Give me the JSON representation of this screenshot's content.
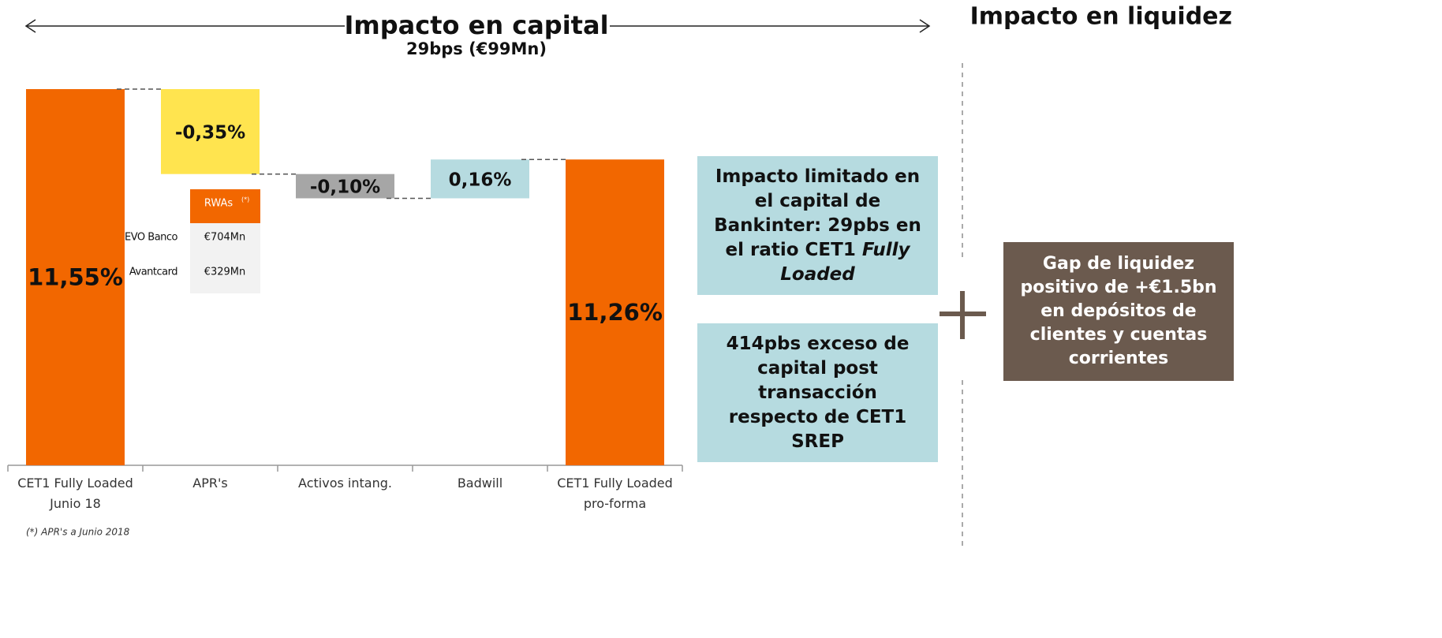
{
  "header": {
    "left_title": "Impacto en capital",
    "left_subtitle": "29bps (€99Mn)",
    "right_title": "Impacto en liquidez"
  },
  "chart_data": {
    "type": "waterfall",
    "categories": [
      "CET1 Fully Loaded Junio 18",
      "APR's",
      "Activos intang.",
      "Badwill",
      "CET1 Fully Loaded pro-forma"
    ],
    "values": [
      11.55,
      -0.35,
      -0.1,
      0.16,
      11.26
    ],
    "value_labels": [
      "11,55%",
      "-0,35%",
      "-0,10%",
      "0,16%",
      "11,26%"
    ],
    "colors": [
      "#f26700",
      "#ffe44f",
      "#a6a6a6",
      "#b6dbe0",
      "#f26700"
    ],
    "ylim": [
      10,
      11.6
    ]
  },
  "rwa_table": {
    "header": "RWAs",
    "note_mark": "(*)",
    "rows": [
      [
        "EVO Banco",
        "€704Mn"
      ],
      [
        "Avantcard",
        "€329Mn"
      ]
    ]
  },
  "boxes": [
    {
      "text": "Impacto limitado en el capital de Bankinter: 29pbs en el ratio CET1",
      "emphasis": "Fully Loaded"
    },
    {
      "text": "414pbs exceso de capital post transacción respecto de CET1 SREP"
    }
  ],
  "liquidity_box": "Gap de liquidez positivo de +€1.5bn en depósitos de clientes y cuentas corrientes",
  "footnote": "(*) APR's a Junio 2018"
}
